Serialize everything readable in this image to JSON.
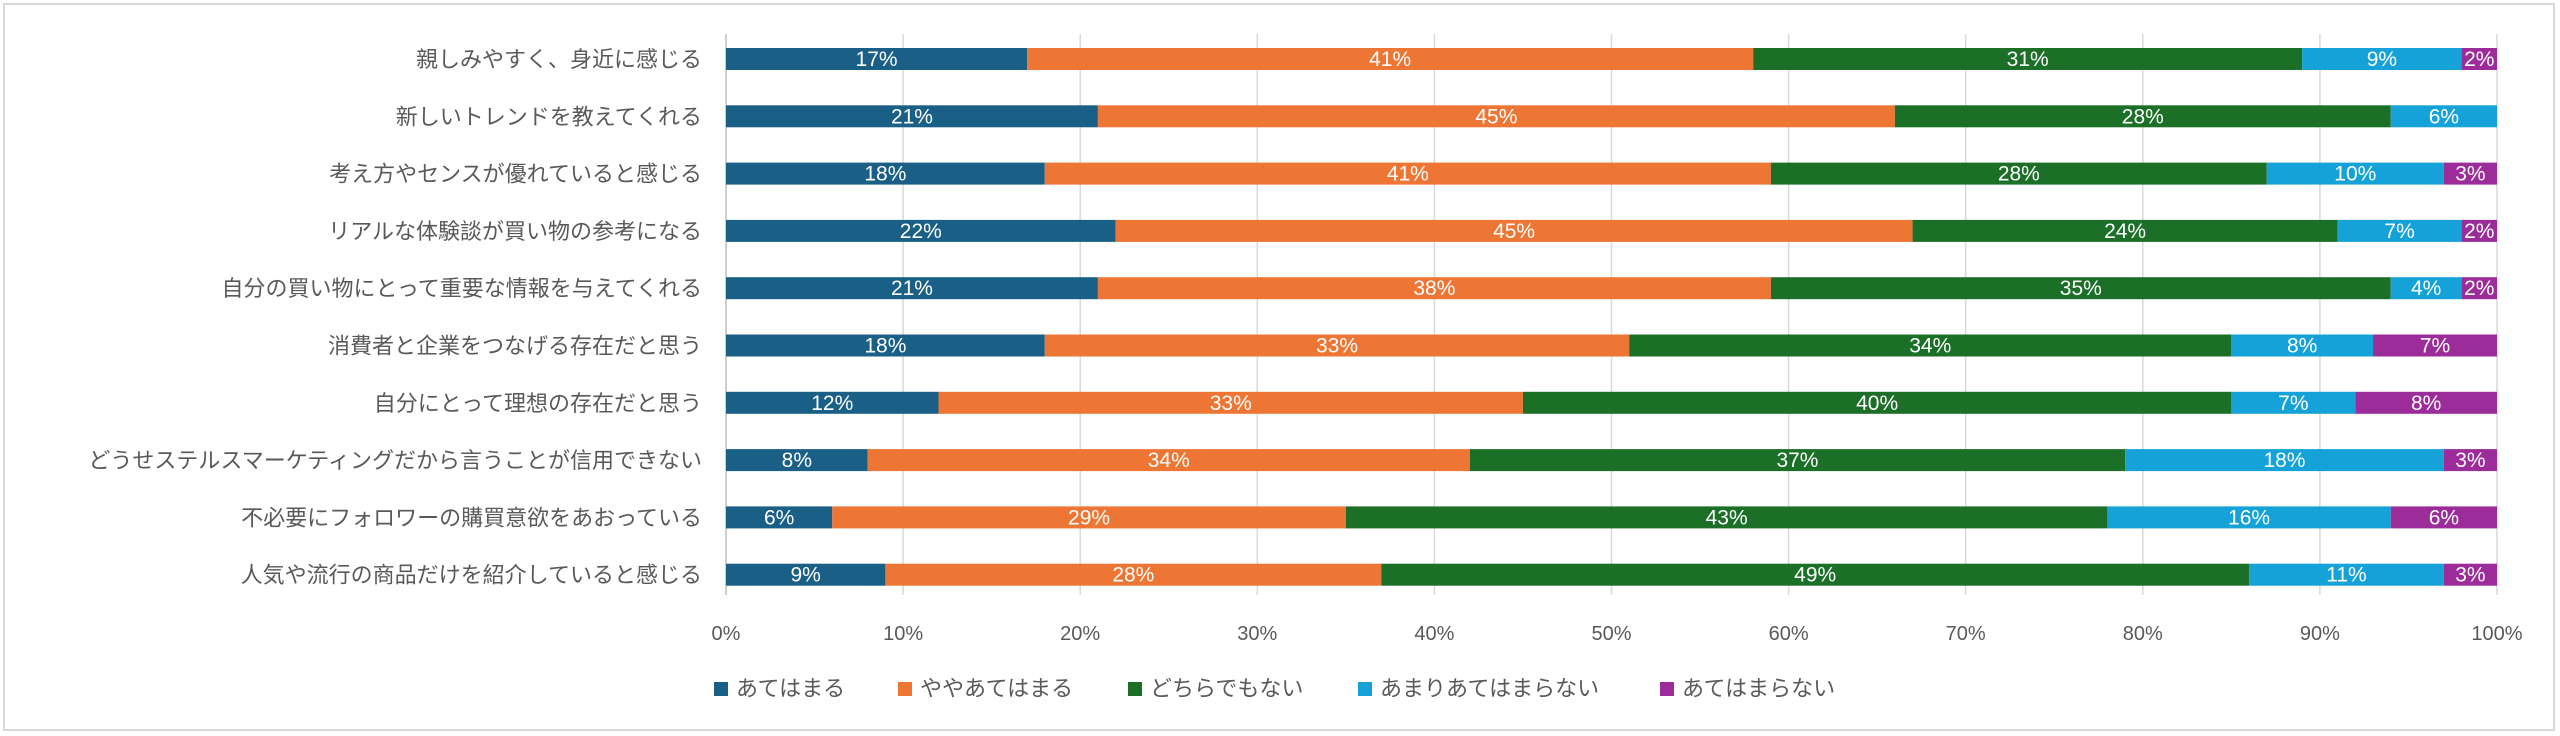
{
  "chart_data": {
    "type": "bar",
    "orientation": "horizontal",
    "stacked": "percent",
    "title": "",
    "xlabel": "",
    "ylabel": "",
    "xlim": [
      0,
      100
    ],
    "x_ticks": [
      "0%",
      "10%",
      "20%",
      "30%",
      "40%",
      "50%",
      "60%",
      "70%",
      "80%",
      "90%",
      "100%"
    ],
    "grid": "vertical",
    "legend_position": "bottom",
    "categories": [
      "親しみやすく、身近に感じる",
      "新しいトレンドを教えてくれる",
      "考え方やセンスが優れていると感じる",
      "リアルな体験談が買い物の参考になる",
      "自分の買い物にとって重要な情報を与えてくれる",
      "消費者と企業をつなげる存在だと思う",
      "自分にとって理想の存在だと思う",
      "どうせステルスマーケティングだから言うことが信用できない",
      "不必要にフォロワーの購買意欲をあおっている",
      "人気や流行の商品だけを紹介していると感じる"
    ],
    "series": [
      {
        "name": "あてはまる",
        "color": "#1a5f86",
        "values": [
          17,
          21,
          18,
          22,
          21,
          18,
          12,
          8,
          6,
          9
        ],
        "labels": [
          "17%",
          "21%",
          "18%",
          "22%",
          "21%",
          "18%",
          "12%",
          "8%",
          "6%",
          "9%"
        ]
      },
      {
        "name": "ややあてはまる",
        "color": "#ee7634",
        "values": [
          41,
          45,
          41,
          45,
          38,
          33,
          33,
          34,
          29,
          28
        ],
        "labels": [
          "41%",
          "45%",
          "41%",
          "45%",
          "38%",
          "33%",
          "33%",
          "34%",
          "29%",
          "28%"
        ]
      },
      {
        "name": "どちらでもない",
        "color": "#1b6f27",
        "values": [
          31,
          28,
          28,
          24,
          35,
          34,
          40,
          37,
          43,
          49
        ],
        "labels": [
          "31%",
          "28%",
          "28%",
          "24%",
          "35%",
          "34%",
          "40%",
          "37%",
          "43%",
          "49%"
        ]
      },
      {
        "name": "あまりあてはまらない",
        "color": "#14a2d8",
        "values": [
          9,
          6,
          10,
          7,
          4,
          8,
          7,
          18,
          16,
          11
        ],
        "labels": [
          "9%",
          "6%",
          "10%",
          "7%",
          "4%",
          "8%",
          "7%",
          "18%",
          "16%",
          "11%"
        ]
      },
      {
        "name": "あてはまらない",
        "color": "#9b2c99",
        "values": [
          2,
          0,
          3,
          2,
          2,
          7,
          8,
          3,
          6,
          3
        ],
        "labels": [
          "2%",
          "",
          "3%",
          "2%",
          "2%",
          "7%",
          "8%",
          "3%",
          "6%",
          "3%"
        ]
      }
    ]
  }
}
